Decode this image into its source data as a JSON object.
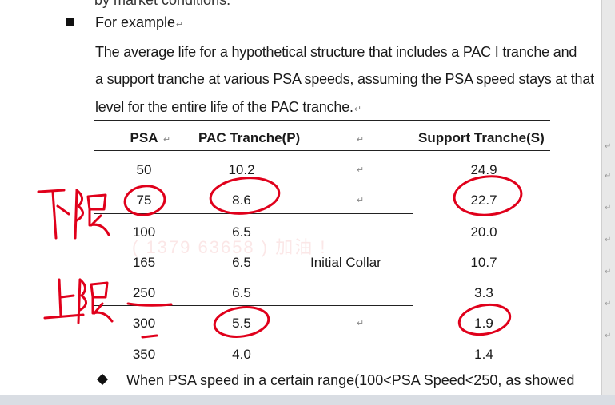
{
  "doc": {
    "cut_text": "by market conditions.",
    "heading": "For example",
    "para_lines": [
      "The average life for a hypothetical structure that includes a PAC I tranche and",
      "a support tranche at various PSA speeds, assuming the PSA speed stays at that",
      "level for the entire life of the PAC tranche."
    ],
    "table": {
      "headers": [
        "PSA",
        "PAC Tranche(P)",
        "Support Tranche(S)"
      ],
      "rows": [
        {
          "psa": "50",
          "pac": "10.2",
          "support": "24.9"
        },
        {
          "psa": "75",
          "pac": "8.6",
          "support": "22.7"
        },
        {
          "psa": "100",
          "pac": "6.5",
          "support": "20.0"
        },
        {
          "psa": "165",
          "pac": "6.5",
          "support": "10.7"
        },
        {
          "psa": "250",
          "pac": "6.5",
          "support": "3.3"
        },
        {
          "psa": "300",
          "pac": "5.5",
          "support": "1.9"
        },
        {
          "psa": "350",
          "pac": "4.0",
          "support": "1.4"
        }
      ],
      "collar_label": "Initial Collar"
    },
    "final_line": "When PSA speed in a certain range(100<PSA Speed<250, as showed",
    "watermark": "( 1379  63658 )  加油 !"
  },
  "annotations": {
    "lower_limit": "下限",
    "upper_limit": "上限"
  },
  "colors": {
    "ink": "#e0001b",
    "text": "#1a1a1a"
  }
}
